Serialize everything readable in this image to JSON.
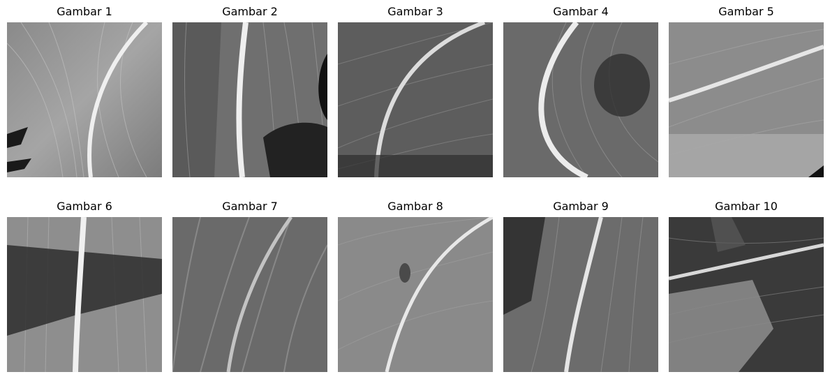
{
  "figure": {
    "panels": [
      {
        "title": "Gambar 1",
        "image": "leaf-texture-grayscale"
      },
      {
        "title": "Gambar 2",
        "image": "leaf-texture-grayscale"
      },
      {
        "title": "Gambar 3",
        "image": "leaf-texture-grayscale"
      },
      {
        "title": "Gambar 4",
        "image": "leaf-texture-grayscale"
      },
      {
        "title": "Gambar 5",
        "image": "leaf-texture-grayscale"
      },
      {
        "title": "Gambar 6",
        "image": "leaf-texture-grayscale"
      },
      {
        "title": "Gambar 7",
        "image": "leaf-texture-grayscale"
      },
      {
        "title": "Gambar 8",
        "image": "leaf-texture-grayscale"
      },
      {
        "title": "Gambar 9",
        "image": "leaf-texture-grayscale"
      },
      {
        "title": "Gambar 10",
        "image": "leaf-texture-grayscale"
      }
    ]
  }
}
